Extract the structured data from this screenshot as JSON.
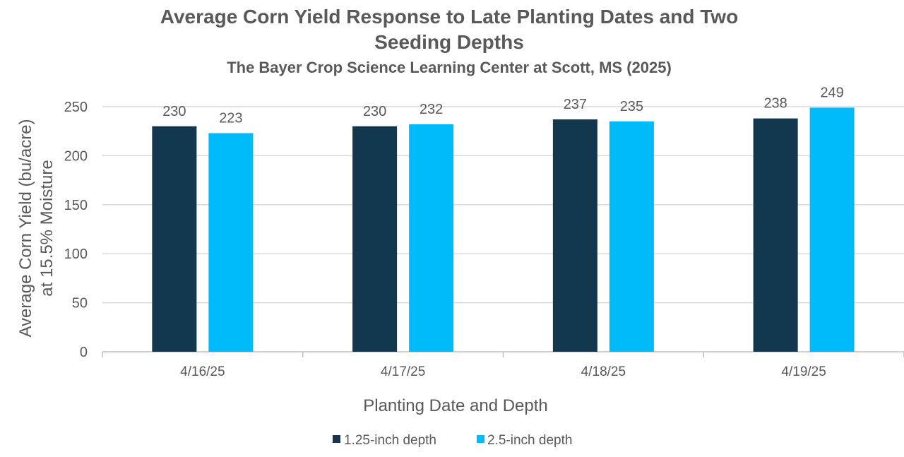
{
  "chart_data": {
    "type": "bar",
    "title": "Average Corn Yield Response to Late Planting Dates and Two Seeding Depths",
    "title_lines": [
      "Average Corn Yield Response to Late Planting Dates and Two",
      "Seeding Depths"
    ],
    "subtitle": "The Bayer Crop Science Learning Center at Scott, MS (2025)",
    "xlabel": "Planting Date and Depth",
    "ylabel_lines": [
      "Average Corn Yield (bu/acre)",
      "at 15.5% Moisture"
    ],
    "categories": [
      "4/16/25",
      "4/17/25",
      "4/18/25",
      "4/19/25"
    ],
    "series": [
      {
        "name": "1.25-inch depth",
        "color": "#12374e",
        "values": [
          230,
          230,
          237,
          238
        ]
      },
      {
        "name": "2.5-inch depth",
        "color": "#00bbf9",
        "values": [
          223,
          232,
          235,
          249
        ]
      }
    ],
    "ylim": [
      0,
      250
    ],
    "yticks": [
      0,
      50,
      100,
      150,
      200,
      250
    ],
    "grid": true,
    "legend": "bottom",
    "data_labels": true
  }
}
